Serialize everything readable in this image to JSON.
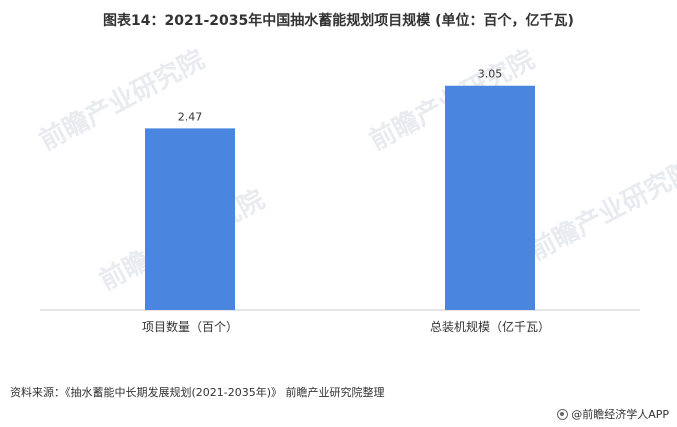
{
  "watermark": "前瞻产业研究院",
  "footer": {
    "source": "资料来源：《抽水蓄能中长期发展规划(2021-2035年)》 前瞻产业研究院整理",
    "brand": "@前瞻经济学人APP"
  },
  "colors": {
    "bar": "#4a86e0"
  },
  "chart_data": {
    "type": "bar",
    "title": "图表14：2021-2035年中国抽水蓄能规划项目规模 (单位：百个，亿千瓦)",
    "categories": [
      "项目数量（百个）",
      "总装机规模（亿千瓦）"
    ],
    "values": [
      2.47,
      3.05
    ],
    "data_labels": [
      "2.47",
      "3.05"
    ],
    "ylim": [
      0,
      3.4
    ],
    "grid": false,
    "legend": "none"
  }
}
